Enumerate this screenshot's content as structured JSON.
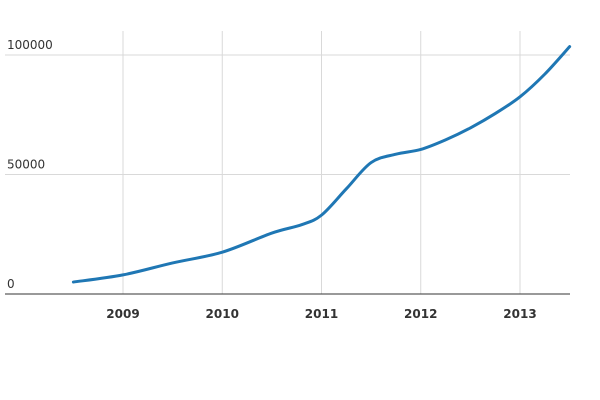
{
  "chart_data": {
    "type": "line",
    "title": "",
    "xlabel": "",
    "ylabel": "",
    "x_ticks": [
      "2009",
      "2010",
      "2011",
      "2012",
      "2013"
    ],
    "y_ticks": [
      0,
      50000,
      100000
    ],
    "ylim": [
      0,
      110000
    ],
    "xlim": [
      2008.0,
      2013.5
    ],
    "grid": true,
    "colors": {
      "line": "#1f77b4",
      "grid": "#d9d9d9",
      "axis": "#333333"
    },
    "series": [
      {
        "x": [
          2008.5,
          2009.0,
          2009.5,
          2010.0,
          2010.5,
          2010.8,
          2011.0,
          2011.25,
          2011.5,
          2011.75,
          2012.0,
          2012.25,
          2012.5,
          2012.75,
          2013.0,
          2013.25,
          2013.5
        ],
        "values": [
          5000,
          8000,
          13000,
          17500,
          25500,
          29000,
          33000,
          44000,
          55000,
          58500,
          60500,
          64500,
          69500,
          75500,
          82500,
          92000,
          103500
        ]
      }
    ]
  }
}
